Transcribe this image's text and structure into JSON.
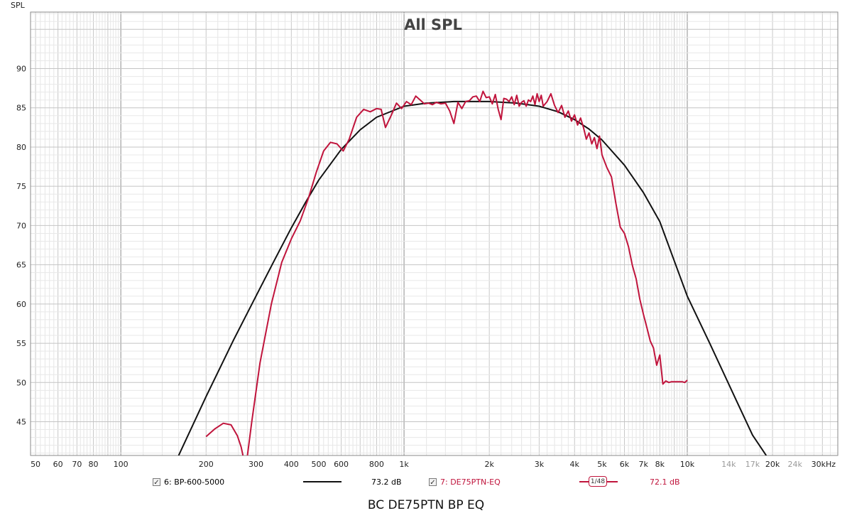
{
  "chart_data": {
    "type": "line",
    "title": "All SPL",
    "ylabel": "SPL",
    "xunit_label": "30kHz",
    "xscale": "log",
    "xlim": [
      48,
      34000
    ],
    "ylim": [
      40.7,
      97.2
    ],
    "grid": true,
    "y_ticks": [
      "90",
      "85",
      "80",
      "75",
      "70",
      "65",
      "60",
      "55",
      "50",
      "45"
    ],
    "x_ticks": [
      {
        "v": 50,
        "label": "50"
      },
      {
        "v": 60,
        "label": "60"
      },
      {
        "v": 70,
        "label": "70"
      },
      {
        "v": 80,
        "label": "80"
      },
      {
        "v": 100,
        "label": "100"
      },
      {
        "v": 200,
        "label": "200"
      },
      {
        "v": 300,
        "label": "300"
      },
      {
        "v": 400,
        "label": "400"
      },
      {
        "v": 500,
        "label": "500"
      },
      {
        "v": 600,
        "label": "600"
      },
      {
        "v": 800,
        "label": "800"
      },
      {
        "v": 1000,
        "label": "1k"
      },
      {
        "v": 2000,
        "label": "2k"
      },
      {
        "v": 3000,
        "label": "3k"
      },
      {
        "v": 4000,
        "label": "4k"
      },
      {
        "v": 5000,
        "label": "5k"
      },
      {
        "v": 6000,
        "label": "6k"
      },
      {
        "v": 7000,
        "label": "7k"
      },
      {
        "v": 8000,
        "label": "8k"
      },
      {
        "v": 10000,
        "label": "10k"
      },
      {
        "v": 14000,
        "label": "14k",
        "grey": true
      },
      {
        "v": 17000,
        "label": "17k",
        "grey": true
      },
      {
        "v": 20000,
        "label": "20k"
      },
      {
        "v": 24000,
        "label": "24k",
        "grey": true
      }
    ],
    "series": [
      {
        "name": "6: BP-600-5000",
        "color": "#111111",
        "x": [
          160,
          200,
          250,
          300,
          350,
          400,
          450,
          500,
          600,
          700,
          800,
          1000,
          1200,
          1500,
          2000,
          2500,
          3000,
          3500,
          4000,
          4500,
          5000,
          6000,
          7000,
          8000,
          10000,
          12000,
          15000,
          17000,
          19000
        ],
        "y": [
          40.7,
          48.2,
          55.4,
          61.0,
          65.7,
          69.7,
          73.0,
          75.8,
          79.7,
          82.2,
          83.8,
          85.2,
          85.6,
          85.8,
          85.8,
          85.6,
          85.2,
          84.5,
          83.5,
          82.3,
          80.9,
          77.7,
          74.2,
          70.5,
          61.0,
          55.0,
          47.5,
          43.3,
          40.7
        ]
      },
      {
        "name": "7: DE75PTN-EQ",
        "color": "#c0143c",
        "x": [
          200,
          215,
          230,
          245,
          258,
          266,
          270
        ],
        "y": [
          43.1,
          44.1,
          44.8,
          44.6,
          43.2,
          41.8,
          40.7
        ]
      },
      {
        "name": "7: DE75PTN-EQ",
        "color": "#c0143c",
        "x": [
          280,
          290,
          310,
          340,
          370,
          400,
          430,
          460,
          490,
          520,
          550,
          580,
          610,
          640,
          680,
          720,
          760,
          800,
          830,
          860,
          900,
          940,
          980,
          1020,
          1060,
          1100,
          1140,
          1180,
          1220,
          1260,
          1300,
          1350,
          1400,
          1450,
          1500,
          1550,
          1600,
          1650,
          1700,
          1750,
          1800,
          1850,
          1900,
          1950,
          2000,
          2050,
          2100,
          2150,
          2200,
          2250,
          2300,
          2350,
          2400,
          2450,
          2500,
          2550,
          2600,
          2650,
          2700,
          2750,
          2800,
          2850,
          2900,
          2950,
          3000,
          3050,
          3100,
          3200,
          3300,
          3400,
          3500,
          3600,
          3700,
          3800,
          3900,
          4000,
          4100,
          4200,
          4300,
          4400,
          4500,
          4600,
          4700,
          4800,
          4900,
          5000,
          5200,
          5400,
          5600,
          5800,
          6000,
          6200,
          6400,
          6600,
          6800,
          7000,
          7200,
          7400,
          7600,
          7800,
          8000,
          8200,
          8400,
          8600,
          8800,
          9000,
          9200,
          9400,
          9600,
          9800,
          10000
        ],
        "y": [
          40.7,
          45.0,
          52.5,
          60.0,
          65.3,
          68.3,
          70.6,
          73.5,
          76.8,
          79.5,
          80.6,
          80.4,
          79.5,
          81.0,
          83.8,
          84.8,
          84.5,
          84.9,
          84.8,
          82.5,
          84.0,
          85.6,
          84.9,
          85.8,
          85.4,
          86.5,
          86.0,
          85.5,
          85.6,
          85.4,
          85.7,
          85.5,
          85.6,
          84.6,
          83.0,
          85.7,
          84.9,
          85.8,
          85.9,
          86.4,
          86.5,
          85.8,
          87.1,
          86.3,
          86.4,
          85.5,
          86.7,
          84.8,
          83.5,
          86.2,
          86.1,
          85.8,
          86.4,
          85.4,
          86.6,
          85.2,
          85.7,
          85.9,
          85.2,
          86.0,
          85.8,
          86.5,
          85.4,
          86.8,
          85.8,
          86.6,
          85.2,
          85.8,
          86.8,
          85.3,
          84.4,
          85.3,
          83.8,
          84.6,
          83.3,
          84.1,
          82.8,
          83.7,
          82.5,
          81.0,
          81.8,
          80.4,
          81.2,
          79.8,
          81.4,
          79.0,
          77.4,
          76.2,
          72.8,
          69.8,
          69.0,
          67.3,
          64.9,
          63.2,
          60.6,
          58.7,
          57.0,
          55.3,
          54.4,
          52.2,
          53.5,
          49.8,
          50.2,
          50.0,
          50.1,
          50.1,
          50.1,
          50.1,
          50.1,
          50.0,
          50.3
        ]
      }
    ]
  },
  "legend": {
    "series1_label": "6: BP-600-5000",
    "series1_value": "73.2 dB",
    "series2_label": "7: DE75PTN-EQ",
    "series2_value": "72.1 dB",
    "smoothing_num": "1",
    "smoothing_den": "48",
    "check_mark": "✓"
  },
  "footer": {
    "title": "BC DE75PTN BP EQ"
  }
}
